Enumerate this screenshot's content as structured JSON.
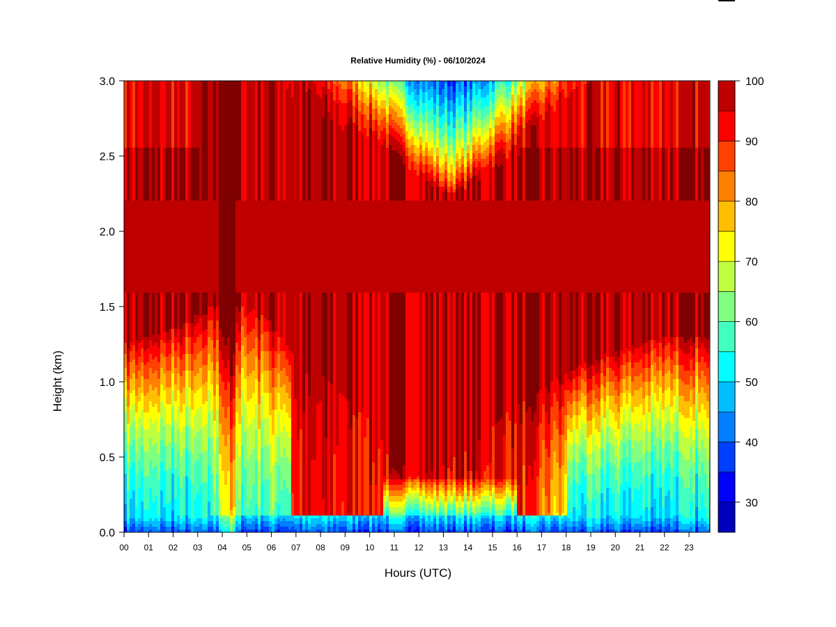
{
  "chart_data": {
    "type": "heatmap",
    "title": "Relative Humidity (%) - 06/10/2024",
    "xlabel": "Hours (UTC)",
    "ylabel": "Height (km)",
    "x_ticks": [
      "00",
      "01",
      "02",
      "03",
      "04",
      "05",
      "06",
      "07",
      "08",
      "09",
      "10",
      "11",
      "12",
      "13",
      "14",
      "15",
      "16",
      "17",
      "18",
      "19",
      "20",
      "21",
      "22",
      "23"
    ],
    "xlim": [
      0,
      23.85
    ],
    "y_ticks": [
      "0.0",
      "0.5",
      "1.0",
      "1.5",
      "2.0",
      "2.5",
      "3.0"
    ],
    "ylim": [
      0,
      3.0
    ],
    "colorbar": {
      "ticks": [
        "30",
        "40",
        "50",
        "60",
        "70",
        "80",
        "90",
        "100"
      ],
      "levels": [
        25,
        30,
        35,
        40,
        45,
        50,
        55,
        60,
        65,
        70,
        75,
        80,
        85,
        90,
        95,
        100
      ],
      "colors": [
        "#00007F",
        "#0000BF",
        "#0000FF",
        "#0040FF",
        "#0080FF",
        "#00BFFF",
        "#00FFFF",
        "#40FFBF",
        "#80FF80",
        "#BFFF40",
        "#FFFF00",
        "#FFBF00",
        "#FF8000",
        "#FF4000",
        "#FF0000",
        "#BF0000",
        "#7F0000"
      ]
    },
    "field_description_hours": [
      0,
      1,
      2,
      3,
      3.5,
      4,
      5,
      6,
      6.8,
      8,
      9,
      10,
      11,
      11.7,
      13,
      14,
      15,
      16,
      17,
      18,
      19,
      20,
      21,
      22,
      23,
      23.85
    ],
    "top_boundary_km": [
      1.25,
      1.3,
      1.35,
      1.45,
      1.5,
      1.5,
      1.5,
      1.4,
      1.2,
      1.05,
      0.9,
      0.75,
      0.55,
      0.35,
      0.45,
      0.55,
      0.7,
      0.85,
      0.95,
      1.05,
      1.15,
      1.2,
      1.25,
      1.3,
      1.3,
      1.3
    ],
    "upper_dry_center_hours": 13.3,
    "upper_dry_min_rh": 38,
    "near_surface_min_rh": 38
  }
}
